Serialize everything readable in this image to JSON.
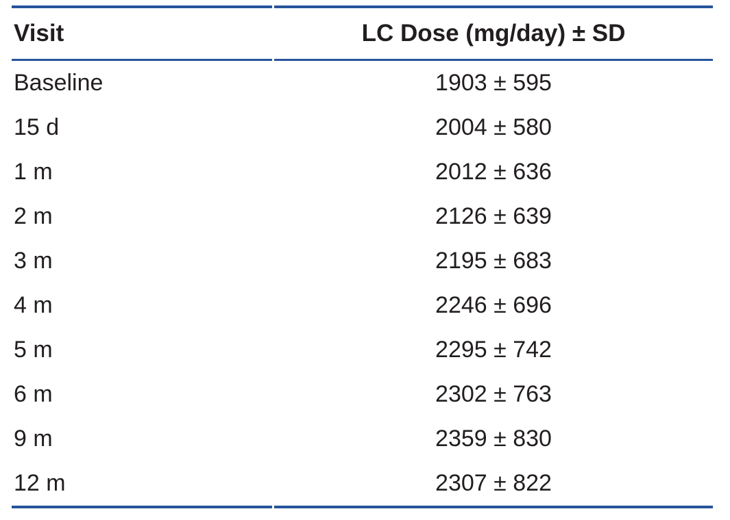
{
  "colors": {
    "rule": "#27549b",
    "text": "#221e1f"
  },
  "table": {
    "columns": [
      {
        "label": "Visit"
      },
      {
        "label": "LC Dose (mg/day) ± SD"
      }
    ],
    "rows": [
      {
        "visit": "Baseline",
        "dose": "1903 ± 595"
      },
      {
        "visit": "15 d",
        "dose": "2004 ± 580"
      },
      {
        "visit": "1 m",
        "dose": "2012 ± 636"
      },
      {
        "visit": "2 m",
        "dose": "2126 ± 639"
      },
      {
        "visit": "3 m",
        "dose": "2195 ± 683"
      },
      {
        "visit": "4 m",
        "dose": "2246 ± 696"
      },
      {
        "visit": "5 m",
        "dose": "2295 ± 742"
      },
      {
        "visit": "6 m",
        "dose": "2302 ± 763"
      },
      {
        "visit": "9 m",
        "dose": "2359 ± 830"
      },
      {
        "visit": "12 m",
        "dose": "2307 ± 822"
      }
    ]
  }
}
